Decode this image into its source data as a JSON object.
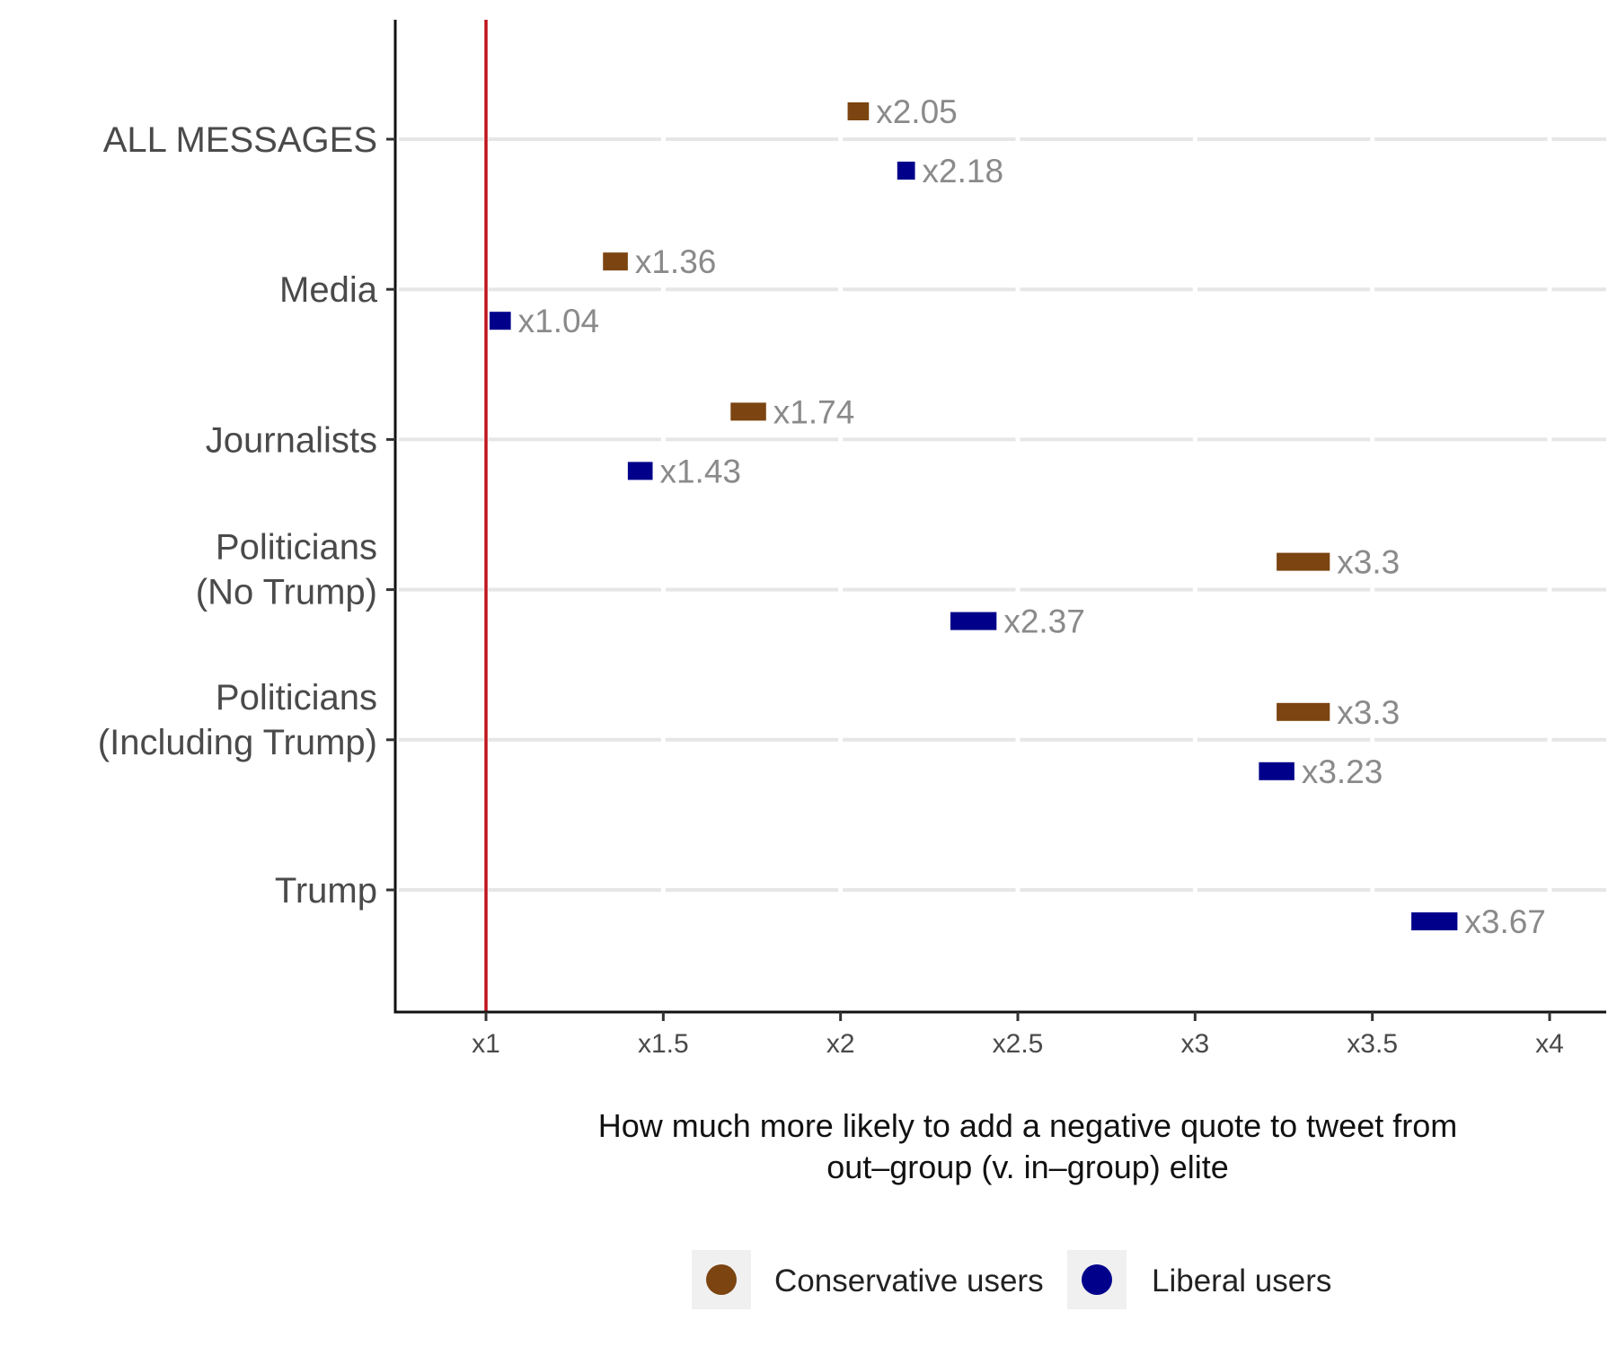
{
  "chart_data": {
    "type": "scatter",
    "orientation": "horizontal",
    "xlabel_lines": [
      "How much more likely to add a negative quote to tweet from",
      "out–group (v. in–group) elite"
    ],
    "ylabel": "",
    "xlim": [
      0.75,
      4.15
    ],
    "x_ticks": [
      1,
      1.5,
      2,
      2.5,
      3,
      3.5,
      4
    ],
    "x_tick_labels": [
      "x1",
      "x1.5",
      "x2",
      "x2.5",
      "x3",
      "x3.5",
      "x4"
    ],
    "reference_line": {
      "x": 1,
      "color": "#c0141b"
    },
    "grid": true,
    "legend_position": "bottom",
    "categories": [
      {
        "lines": [
          "ALL MESSAGES"
        ]
      },
      {
        "lines": [
          "Media"
        ]
      },
      {
        "lines": [
          "Journalists"
        ]
      },
      {
        "lines": [
          "Politicians",
          "(No Trump)"
        ]
      },
      {
        "lines": [
          "Politicians",
          "(Including Trump)"
        ]
      },
      {
        "lines": [
          "Trump"
        ]
      }
    ],
    "series": [
      {
        "name": "Conservative users",
        "color": "#7b4410",
        "points": [
          {
            "value": 2.05,
            "low": 2.02,
            "high": 2.08,
            "label": "x2.05"
          },
          {
            "value": 1.36,
            "low": 1.33,
            "high": 1.4,
            "label": "x1.36"
          },
          {
            "value": 1.74,
            "low": 1.69,
            "high": 1.79,
            "label": "x1.74"
          },
          {
            "value": 3.3,
            "low": 3.23,
            "high": 3.38,
            "label": "x3.3"
          },
          {
            "value": 3.3,
            "low": 3.23,
            "high": 3.38,
            "label": "x3.3"
          },
          null
        ]
      },
      {
        "name": "Liberal users",
        "color": "#00008b",
        "points": [
          {
            "value": 2.18,
            "low": 2.16,
            "high": 2.21,
            "label": "x2.18"
          },
          {
            "value": 1.04,
            "low": 1.01,
            "high": 1.07,
            "label": "x1.04"
          },
          {
            "value": 1.43,
            "low": 1.4,
            "high": 1.47,
            "label": "x1.43"
          },
          {
            "value": 2.37,
            "low": 2.31,
            "high": 2.44,
            "label": "x2.37"
          },
          {
            "value": 3.23,
            "low": 3.18,
            "high": 3.28,
            "label": "x3.23"
          },
          {
            "value": 3.67,
            "low": 3.61,
            "high": 3.74,
            "label": "x3.67"
          }
        ]
      }
    ]
  }
}
